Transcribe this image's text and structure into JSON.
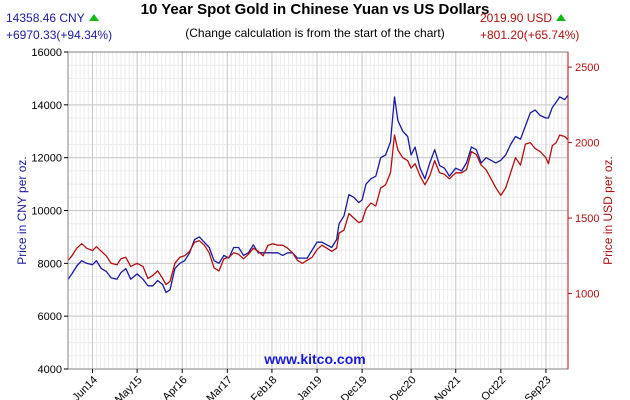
{
  "header": {
    "title": "10 Year Spot Gold in Chinese Yuan vs US Dollars",
    "subtitle": "(Change calculation is from the start of the chart)",
    "cny_price": "14358.46 CNY",
    "cny_change": "+6970.33(+94.34%)",
    "usd_price": "2019.90 USD",
    "usd_change": "+801.20(+65.74%)",
    "source": "www.kitco.com",
    "colors": {
      "cny": "#1a1aa0",
      "usd": "#b01010",
      "up": "#14b814",
      "source": "#1a1ad0"
    }
  },
  "chart_data": {
    "type": "line",
    "title": "10 Year Spot Gold in Chinese Yuan vs US Dollars",
    "subtitle": "(Change calculation is from the start of the chart)",
    "x_tick_labels": [
      "Jun14",
      "May15",
      "Apr16",
      "Mar17",
      "Feb18",
      "Jan19",
      "Dec19",
      "Dec20",
      "Nov21",
      "Oct22",
      "Sep23"
    ],
    "x_ticks": [
      2014.42,
      2015.33,
      2016.25,
      2017.17,
      2018.08,
      2019.0,
      2019.92,
      2020.92,
      2021.83,
      2022.75,
      2023.67
    ],
    "xlim": [
      2013.92,
      2024.12
    ],
    "ylabel_left": "Price in CNY per oz.",
    "ylabel_right": "Price in USD per oz.",
    "ylim_left": [
      4000,
      16000
    ],
    "ylim_right": [
      500,
      2600
    ],
    "yticks_left": [
      4000,
      6000,
      8000,
      10000,
      12000,
      14000,
      16000
    ],
    "yticks_right": [
      1000,
      1500,
      2000,
      2500
    ],
    "grid": true,
    "legend": "none",
    "series": [
      {
        "name": "CNY",
        "axis": "left",
        "color": "#1a1aa0",
        "points": [
          [
            2013.92,
            7390
          ],
          [
            2014.0,
            7600
          ],
          [
            2014.1,
            7900
          ],
          [
            2014.2,
            8100
          ],
          [
            2014.3,
            8000
          ],
          [
            2014.42,
            7950
          ],
          [
            2014.5,
            8100
          ],
          [
            2014.6,
            7800
          ],
          [
            2014.7,
            7700
          ],
          [
            2014.8,
            7450
          ],
          [
            2014.92,
            7400
          ],
          [
            2015.0,
            7650
          ],
          [
            2015.1,
            7800
          ],
          [
            2015.2,
            7400
          ],
          [
            2015.33,
            7600
          ],
          [
            2015.45,
            7400
          ],
          [
            2015.55,
            7150
          ],
          [
            2015.65,
            7150
          ],
          [
            2015.75,
            7350
          ],
          [
            2015.85,
            7200
          ],
          [
            2015.92,
            6900
          ],
          [
            2016.0,
            7000
          ],
          [
            2016.1,
            7800
          ],
          [
            2016.2,
            8000
          ],
          [
            2016.3,
            8100
          ],
          [
            2016.4,
            8400
          ],
          [
            2016.5,
            8900
          ],
          [
            2016.6,
            9000
          ],
          [
            2016.7,
            8800
          ],
          [
            2016.8,
            8600
          ],
          [
            2016.9,
            8100
          ],
          [
            2017.0,
            8000
          ],
          [
            2017.1,
            8300
          ],
          [
            2017.2,
            8200
          ],
          [
            2017.3,
            8600
          ],
          [
            2017.4,
            8600
          ],
          [
            2017.5,
            8300
          ],
          [
            2017.6,
            8400
          ],
          [
            2017.7,
            8700
          ],
          [
            2017.8,
            8400
          ],
          [
            2017.9,
            8400
          ],
          [
            2018.0,
            8400
          ],
          [
            2018.1,
            8400
          ],
          [
            2018.2,
            8400
          ],
          [
            2018.3,
            8300
          ],
          [
            2018.4,
            8400
          ],
          [
            2018.5,
            8400
          ],
          [
            2018.6,
            8200
          ],
          [
            2018.7,
            8200
          ],
          [
            2018.8,
            8200
          ],
          [
            2018.9,
            8500
          ],
          [
            2019.0,
            8800
          ],
          [
            2019.1,
            8800
          ],
          [
            2019.2,
            8700
          ],
          [
            2019.3,
            8600
          ],
          [
            2019.4,
            8900
          ],
          [
            2019.45,
            9500
          ],
          [
            2019.55,
            9800
          ],
          [
            2019.65,
            10600
          ],
          [
            2019.75,
            10500
          ],
          [
            2019.85,
            10300
          ],
          [
            2019.92,
            10400
          ],
          [
            2020.0,
            11000
          ],
          [
            2020.1,
            11200
          ],
          [
            2020.2,
            11300
          ],
          [
            2020.3,
            12000
          ],
          [
            2020.4,
            12100
          ],
          [
            2020.5,
            12600
          ],
          [
            2020.58,
            14300
          ],
          [
            2020.65,
            13400
          ],
          [
            2020.75,
            13000
          ],
          [
            2020.85,
            12800
          ],
          [
            2020.92,
            12100
          ],
          [
            2021.0,
            12400
          ],
          [
            2021.1,
            11600
          ],
          [
            2021.2,
            11200
          ],
          [
            2021.3,
            11800
          ],
          [
            2021.4,
            12300
          ],
          [
            2021.5,
            11700
          ],
          [
            2021.6,
            11600
          ],
          [
            2021.7,
            11300
          ],
          [
            2021.83,
            11600
          ],
          [
            2021.95,
            11500
          ],
          [
            2022.05,
            11800
          ],
          [
            2022.15,
            12400
          ],
          [
            2022.25,
            12300
          ],
          [
            2022.35,
            11800
          ],
          [
            2022.45,
            12000
          ],
          [
            2022.55,
            11900
          ],
          [
            2022.65,
            11800
          ],
          [
            2022.75,
            11900
          ],
          [
            2022.85,
            12100
          ],
          [
            2022.95,
            12500
          ],
          [
            2023.05,
            12800
          ],
          [
            2023.15,
            12700
          ],
          [
            2023.25,
            13200
          ],
          [
            2023.35,
            13700
          ],
          [
            2023.45,
            13800
          ],
          [
            2023.55,
            13600
          ],
          [
            2023.67,
            13500
          ],
          [
            2023.72,
            13500
          ],
          [
            2023.8,
            13900
          ],
          [
            2023.88,
            14100
          ],
          [
            2023.95,
            14300
          ],
          [
            2024.05,
            14200
          ],
          [
            2024.12,
            14358
          ]
        ]
      },
      {
        "name": "USD",
        "axis": "right",
        "color": "#b01010",
        "points": [
          [
            2013.92,
            1219
          ],
          [
            2014.0,
            1250
          ],
          [
            2014.1,
            1300
          ],
          [
            2014.2,
            1330
          ],
          [
            2014.3,
            1300
          ],
          [
            2014.42,
            1285
          ],
          [
            2014.5,
            1310
          ],
          [
            2014.6,
            1280
          ],
          [
            2014.7,
            1250
          ],
          [
            2014.8,
            1200
          ],
          [
            2014.92,
            1190
          ],
          [
            2015.0,
            1230
          ],
          [
            2015.1,
            1240
          ],
          [
            2015.2,
            1180
          ],
          [
            2015.33,
            1200
          ],
          [
            2015.45,
            1180
          ],
          [
            2015.55,
            1100
          ],
          [
            2015.65,
            1120
          ],
          [
            2015.75,
            1150
          ],
          [
            2015.85,
            1100
          ],
          [
            2015.92,
            1060
          ],
          [
            2016.0,
            1080
          ],
          [
            2016.1,
            1200
          ],
          [
            2016.2,
            1240
          ],
          [
            2016.3,
            1250
          ],
          [
            2016.4,
            1280
          ],
          [
            2016.5,
            1340
          ],
          [
            2016.6,
            1350
          ],
          [
            2016.7,
            1320
          ],
          [
            2016.8,
            1270
          ],
          [
            2016.9,
            1170
          ],
          [
            2017.0,
            1150
          ],
          [
            2017.1,
            1230
          ],
          [
            2017.2,
            1240
          ],
          [
            2017.3,
            1270
          ],
          [
            2017.4,
            1260
          ],
          [
            2017.5,
            1230
          ],
          [
            2017.6,
            1260
          ],
          [
            2017.7,
            1300
          ],
          [
            2017.8,
            1280
          ],
          [
            2017.9,
            1250
          ],
          [
            2018.0,
            1320
          ],
          [
            2018.1,
            1330
          ],
          [
            2018.2,
            1320
          ],
          [
            2018.3,
            1320
          ],
          [
            2018.4,
            1300
          ],
          [
            2018.5,
            1270
          ],
          [
            2018.6,
            1220
          ],
          [
            2018.7,
            1200
          ],
          [
            2018.8,
            1220
          ],
          [
            2018.9,
            1240
          ],
          [
            2019.0,
            1290
          ],
          [
            2019.1,
            1320
          ],
          [
            2019.2,
            1300
          ],
          [
            2019.3,
            1280
          ],
          [
            2019.4,
            1300
          ],
          [
            2019.45,
            1400
          ],
          [
            2019.55,
            1420
          ],
          [
            2019.65,
            1530
          ],
          [
            2019.75,
            1500
          ],
          [
            2019.85,
            1470
          ],
          [
            2019.92,
            1480
          ],
          [
            2020.0,
            1560
          ],
          [
            2020.1,
            1600
          ],
          [
            2020.2,
            1580
          ],
          [
            2020.3,
            1700
          ],
          [
            2020.4,
            1720
          ],
          [
            2020.5,
            1800
          ],
          [
            2020.58,
            2050
          ],
          [
            2020.65,
            1950
          ],
          [
            2020.75,
            1900
          ],
          [
            2020.85,
            1880
          ],
          [
            2020.92,
            1830
          ],
          [
            2021.0,
            1860
          ],
          [
            2021.1,
            1780
          ],
          [
            2021.2,
            1720
          ],
          [
            2021.3,
            1780
          ],
          [
            2021.4,
            1880
          ],
          [
            2021.5,
            1800
          ],
          [
            2021.6,
            1790
          ],
          [
            2021.7,
            1760
          ],
          [
            2021.83,
            1800
          ],
          [
            2021.95,
            1800
          ],
          [
            2022.05,
            1820
          ],
          [
            2022.15,
            1940
          ],
          [
            2022.25,
            1920
          ],
          [
            2022.35,
            1850
          ],
          [
            2022.45,
            1820
          ],
          [
            2022.55,
            1760
          ],
          [
            2022.65,
            1700
          ],
          [
            2022.75,
            1650
          ],
          [
            2022.85,
            1700
          ],
          [
            2022.95,
            1800
          ],
          [
            2023.05,
            1900
          ],
          [
            2023.15,
            1850
          ],
          [
            2023.25,
            1990
          ],
          [
            2023.35,
            2000
          ],
          [
            2023.45,
            1960
          ],
          [
            2023.55,
            1940
          ],
          [
            2023.67,
            1900
          ],
          [
            2023.72,
            1860
          ],
          [
            2023.8,
            1980
          ],
          [
            2023.88,
            2000
          ],
          [
            2023.95,
            2050
          ],
          [
            2024.05,
            2040
          ],
          [
            2024.12,
            2020
          ]
        ]
      }
    ]
  }
}
